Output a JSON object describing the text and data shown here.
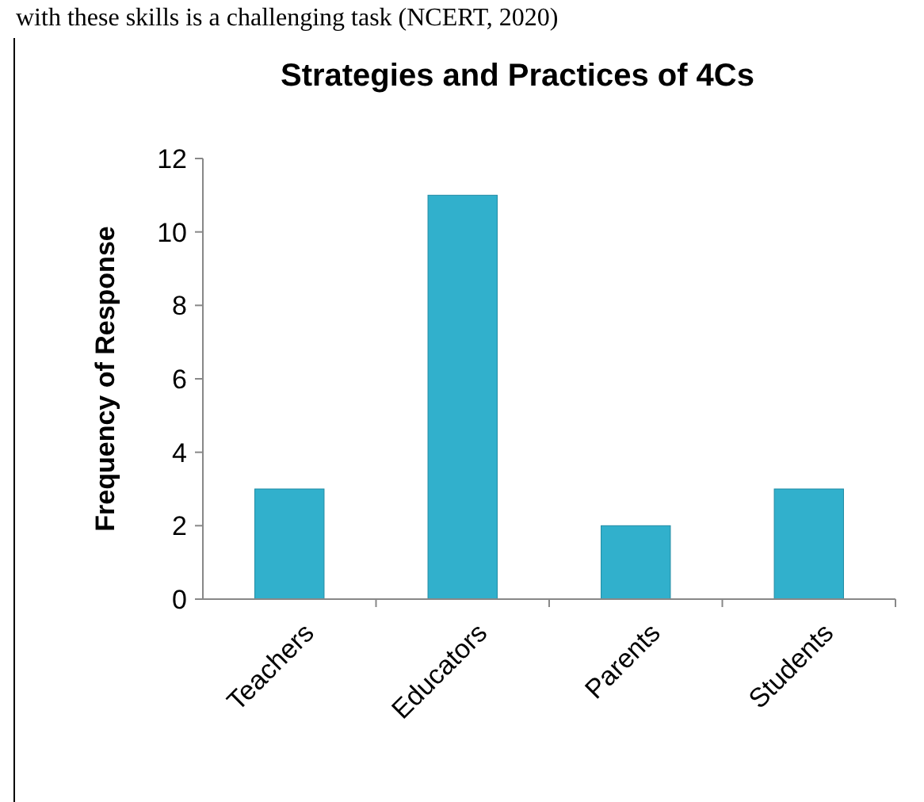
{
  "chart_data": {
    "type": "bar",
    "title": "Strategies and Practices of 4Cs",
    "ylabel": "Frequency of Response",
    "categories": [
      "Teachers",
      "Educators",
      "Parents",
      "Students"
    ],
    "values": [
      3,
      11,
      2,
      3
    ],
    "color": "#31b0cc",
    "ylim": [
      0,
      12
    ],
    "yticks": [
      0,
      2,
      4,
      6,
      8,
      10,
      12
    ],
    "grid": false,
    "annotations": [
      "with these skills is a challenging task (NCERT, 2020)"
    ]
  }
}
